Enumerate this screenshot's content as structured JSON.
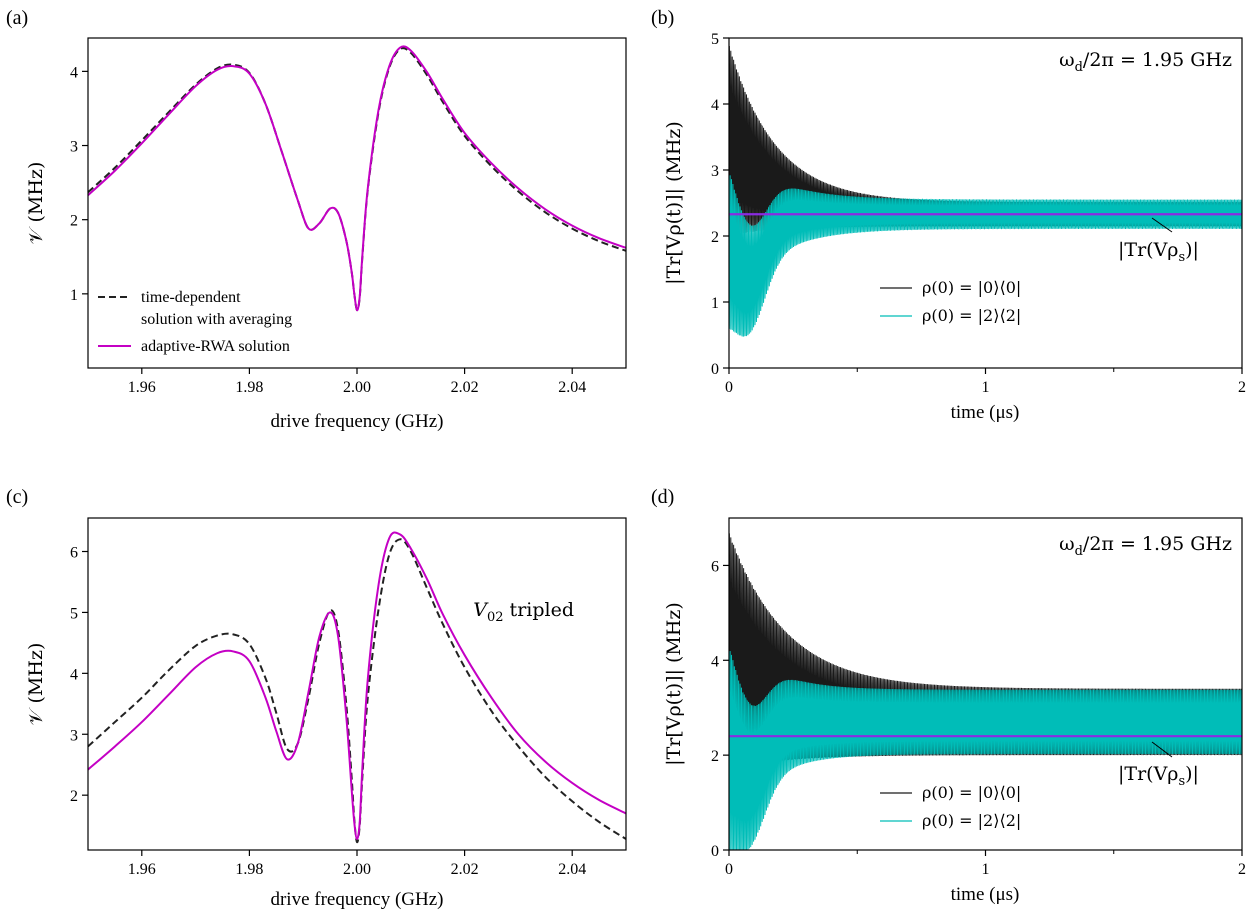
{
  "figure": {
    "panels": [
      {
        "id": "a",
        "label": "(a)",
        "type": "line",
        "xlabel": "drive frequency (GHz)",
        "ylabel": "𝒱  (MHz)",
        "xlim": [
          1.95,
          2.05
        ],
        "ylim": [
          0,
          4.45
        ],
        "xticks": [
          1.96,
          1.98,
          2.0,
          2.02,
          2.04
        ],
        "xtick_labels": [
          "1.96",
          "1.98",
          "2.00",
          "2.02",
          "2.04"
        ],
        "yticks": [
          1,
          2,
          3,
          4
        ],
        "ytick_labels": [
          "1",
          "2",
          "3",
          "4"
        ],
        "minor_xticks": [],
        "annotation": "",
        "legend_position": "bottom-left",
        "series": [
          {
            "name": "time-dependent",
            "name_line2": "solution with averaging",
            "color": "#222222",
            "style": "dashed",
            "width": 2,
            "x": [
              1.95,
              1.955,
              1.96,
              1.965,
              1.97,
              1.974,
              1.977,
              1.98,
              1.983,
              1.986,
              1.989,
              1.991,
              1.993,
              1.995,
              1.9965,
              1.998,
              1.999,
              1.9995,
              2.0,
              2.0005,
              2.001,
              2.002,
              2.004,
              2.006,
              2.008,
              2.01,
              2.013,
              2.016,
              2.02,
              2.025,
              2.03,
              2.035,
              2.04,
              2.045,
              2.05
            ],
            "y": [
              2.37,
              2.7,
              3.07,
              3.45,
              3.82,
              4.04,
              4.09,
              3.98,
              3.56,
              2.92,
              2.26,
              1.88,
              1.95,
              2.15,
              2.09,
              1.72,
              1.3,
              1.0,
              0.78,
              0.95,
              1.5,
              2.4,
              3.45,
              4.05,
              4.3,
              4.25,
              3.95,
              3.58,
              3.13,
              2.72,
              2.38,
              2.1,
              1.88,
              1.71,
              1.58
            ]
          },
          {
            "name": "adaptive-RWA solution",
            "color": "#c400c4",
            "style": "solid",
            "width": 2,
            "x": [
              1.95,
              1.955,
              1.96,
              1.965,
              1.97,
              1.974,
              1.977,
              1.98,
              1.983,
              1.986,
              1.989,
              1.991,
              1.993,
              1.995,
              1.9965,
              1.998,
              1.999,
              1.9995,
              2.0,
              2.0005,
              2.001,
              2.002,
              2.004,
              2.006,
              2.008,
              2.01,
              2.013,
              2.016,
              2.02,
              2.025,
              2.03,
              2.035,
              2.04,
              2.045,
              2.05
            ],
            "y": [
              2.33,
              2.66,
              3.03,
              3.42,
              3.8,
              4.02,
              4.07,
              3.97,
              3.56,
              2.92,
              2.26,
              1.88,
              1.95,
              2.15,
              2.09,
              1.72,
              1.3,
              1.0,
              0.78,
              0.96,
              1.52,
              2.42,
              3.48,
              4.07,
              4.32,
              4.28,
              3.99,
              3.62,
              3.17,
              2.76,
              2.42,
              2.14,
              1.92,
              1.75,
              1.62
            ]
          }
        ]
      },
      {
        "id": "b",
        "label": "(b)",
        "type": "line",
        "xlabel": "time (μs)",
        "ylabel": "|Tr[Vρ(t)]|  (MHz)",
        "xlim": [
          0,
          2
        ],
        "ylim": [
          0,
          5
        ],
        "xticks": [
          0,
          1,
          2
        ],
        "xtick_labels": [
          "0",
          "1",
          "2"
        ],
        "minor_xticks": [
          0.5,
          1.5
        ],
        "yticks": [
          0,
          1,
          2,
          3,
          4,
          5
        ],
        "ytick_labels": [
          "0",
          "1",
          "2",
          "3",
          "4",
          "5"
        ],
        "annotation": "ω_d/2π = 1.95 GHz",
        "annotation_parts": {
          "omega": "ω",
          "sub": "d",
          "rest": "/2π = 1.95 GHz"
        },
        "steady_label": "|Tr(Vρ_s)|",
        "steady_label_parts": {
          "pre": "|Tr(Vρ",
          "sub": "s",
          "post": ")|"
        },
        "steady_value": 2.33,
        "steady_color": "#8a2be2",
        "legend_position": "bottom-center",
        "traces": [
          {
            "name": "ρ(0) = |0⟩⟨0|",
            "color": "#1a1a1a",
            "start": 3.45,
            "amp0": 1.45,
            "decay_tau": 0.18,
            "final_center": 2.33,
            "final_amp": 0.18,
            "cycles": 180
          },
          {
            "name": "ρ(0) = |2⟩⟨2|",
            "color": "#00bdb8",
            "start": 2.2,
            "amp0": 1.2,
            "dip": 1.5,
            "rise_tau": 0.17,
            "final_center": 2.33,
            "final_amp": 0.22,
            "cycles": 180
          }
        ]
      },
      {
        "id": "c",
        "label": "(c)",
        "type": "line",
        "xlabel": "drive frequency (GHz)",
        "ylabel": "𝒱  (MHz)",
        "xlim": [
          1.95,
          2.05
        ],
        "ylim": [
          1.1,
          6.55
        ],
        "xticks": [
          1.96,
          1.98,
          2.0,
          2.02,
          2.04
        ],
        "xtick_labels": [
          "1.96",
          "1.98",
          "2.00",
          "2.02",
          "2.04"
        ],
        "yticks": [
          2,
          3,
          4,
          5,
          6
        ],
        "ytick_labels": [
          "2",
          "3",
          "4",
          "5",
          "6"
        ],
        "minor_xticks": [],
        "annotation": "V₀₂ tripled",
        "annotation_parts": {
          "base": "V",
          "sub": "02",
          "rest": " tripled"
        },
        "legend_position": "",
        "series": [
          {
            "name": "time-dependent",
            "color": "#222222",
            "style": "dashed",
            "width": 2,
            "x": [
              1.95,
              1.955,
              1.96,
              1.965,
              1.97,
              1.974,
              1.977,
              1.98,
              1.983,
              1.985,
              1.987,
              1.989,
              1.991,
              1.993,
              1.995,
              1.9965,
              1.998,
              1.999,
              1.9995,
              2.0,
              2.0005,
              2.001,
              2.002,
              2.004,
              2.006,
              2.008,
              2.01,
              2.013,
              2.016,
              2.02,
              2.025,
              2.03,
              2.035,
              2.04,
              2.045,
              2.05
            ],
            "y": [
              2.8,
              3.2,
              3.6,
              4.05,
              4.45,
              4.62,
              4.64,
              4.48,
              3.92,
              3.35,
              2.76,
              2.85,
              3.6,
              4.5,
              5.03,
              4.7,
              3.5,
              2.3,
              1.6,
              1.23,
              1.5,
              2.3,
              3.6,
              5.05,
              5.95,
              6.2,
              6.0,
              5.4,
              4.8,
              4.1,
              3.38,
              2.8,
              2.3,
              1.9,
              1.56,
              1.28
            ]
          },
          {
            "name": "adaptive-RWA solution",
            "color": "#c400c4",
            "style": "solid",
            "width": 2,
            "x": [
              1.95,
              1.955,
              1.96,
              1.965,
              1.97,
              1.974,
              1.977,
              1.98,
              1.983,
              1.985,
              1.987,
              1.989,
              1.991,
              1.993,
              1.995,
              1.9965,
              1.998,
              1.999,
              1.9995,
              2.0,
              2.0005,
              2.001,
              2.002,
              2.004,
              2.006,
              2.008,
              2.01,
              2.013,
              2.016,
              2.02,
              2.025,
              2.03,
              2.035,
              2.04,
              2.045,
              2.05
            ],
            "y": [
              2.42,
              2.8,
              3.2,
              3.65,
              4.1,
              4.33,
              4.36,
              4.2,
              3.6,
              3.05,
              2.59,
              2.85,
              3.7,
              4.6,
              5.0,
              4.6,
              3.3,
              2.1,
              1.55,
              1.28,
              1.55,
              2.45,
              3.9,
              5.45,
              6.22,
              6.28,
              6.05,
              5.55,
              4.96,
              4.3,
              3.6,
              3.0,
              2.55,
              2.2,
              1.92,
              1.7
            ]
          }
        ]
      },
      {
        "id": "d",
        "label": "(d)",
        "type": "line",
        "xlabel": "time (μs)",
        "ylabel": "|Tr[Vρ(t)]|  (MHz)",
        "xlim": [
          0,
          2
        ],
        "ylim": [
          0,
          7
        ],
        "xticks": [
          0,
          1,
          2
        ],
        "xtick_labels": [
          "0",
          "1",
          "2"
        ],
        "minor_xticks": [
          0.5,
          1.5
        ],
        "yticks": [
          0,
          2,
          4,
          6
        ],
        "ytick_labels": [
          "0",
          "2",
          "4",
          "6"
        ],
        "annotation": "ω_d/2π = 1.95 GHz",
        "annotation_parts": {
          "omega": "ω",
          "sub": "d",
          "rest": "/2π = 1.95 GHz"
        },
        "steady_label": "|Tr(Vρ_s)|",
        "steady_label_parts": {
          "pre": "|Tr(Vρ",
          "sub": "s",
          "post": ")|"
        },
        "steady_value": 2.4,
        "steady_color": "#8a2be2",
        "legend_position": "bottom-center",
        "traces": [
          {
            "name": "ρ(0) = |0⟩⟨0|",
            "color": "#1a1a1a",
            "start": 4.2,
            "amp0": 2.5,
            "decay_tau": 0.22,
            "final_center": 2.7,
            "final_amp": 0.7,
            "cycles": 180
          },
          {
            "name": "ρ(0) = |2⟩⟨2|",
            "color": "#00bdb8",
            "start": 2.6,
            "amp0": 2.2,
            "dip": 1.8,
            "rise_tau": 0.14,
            "final_center": 2.7,
            "final_amp": 0.68,
            "cycles": 180
          }
        ]
      }
    ]
  }
}
